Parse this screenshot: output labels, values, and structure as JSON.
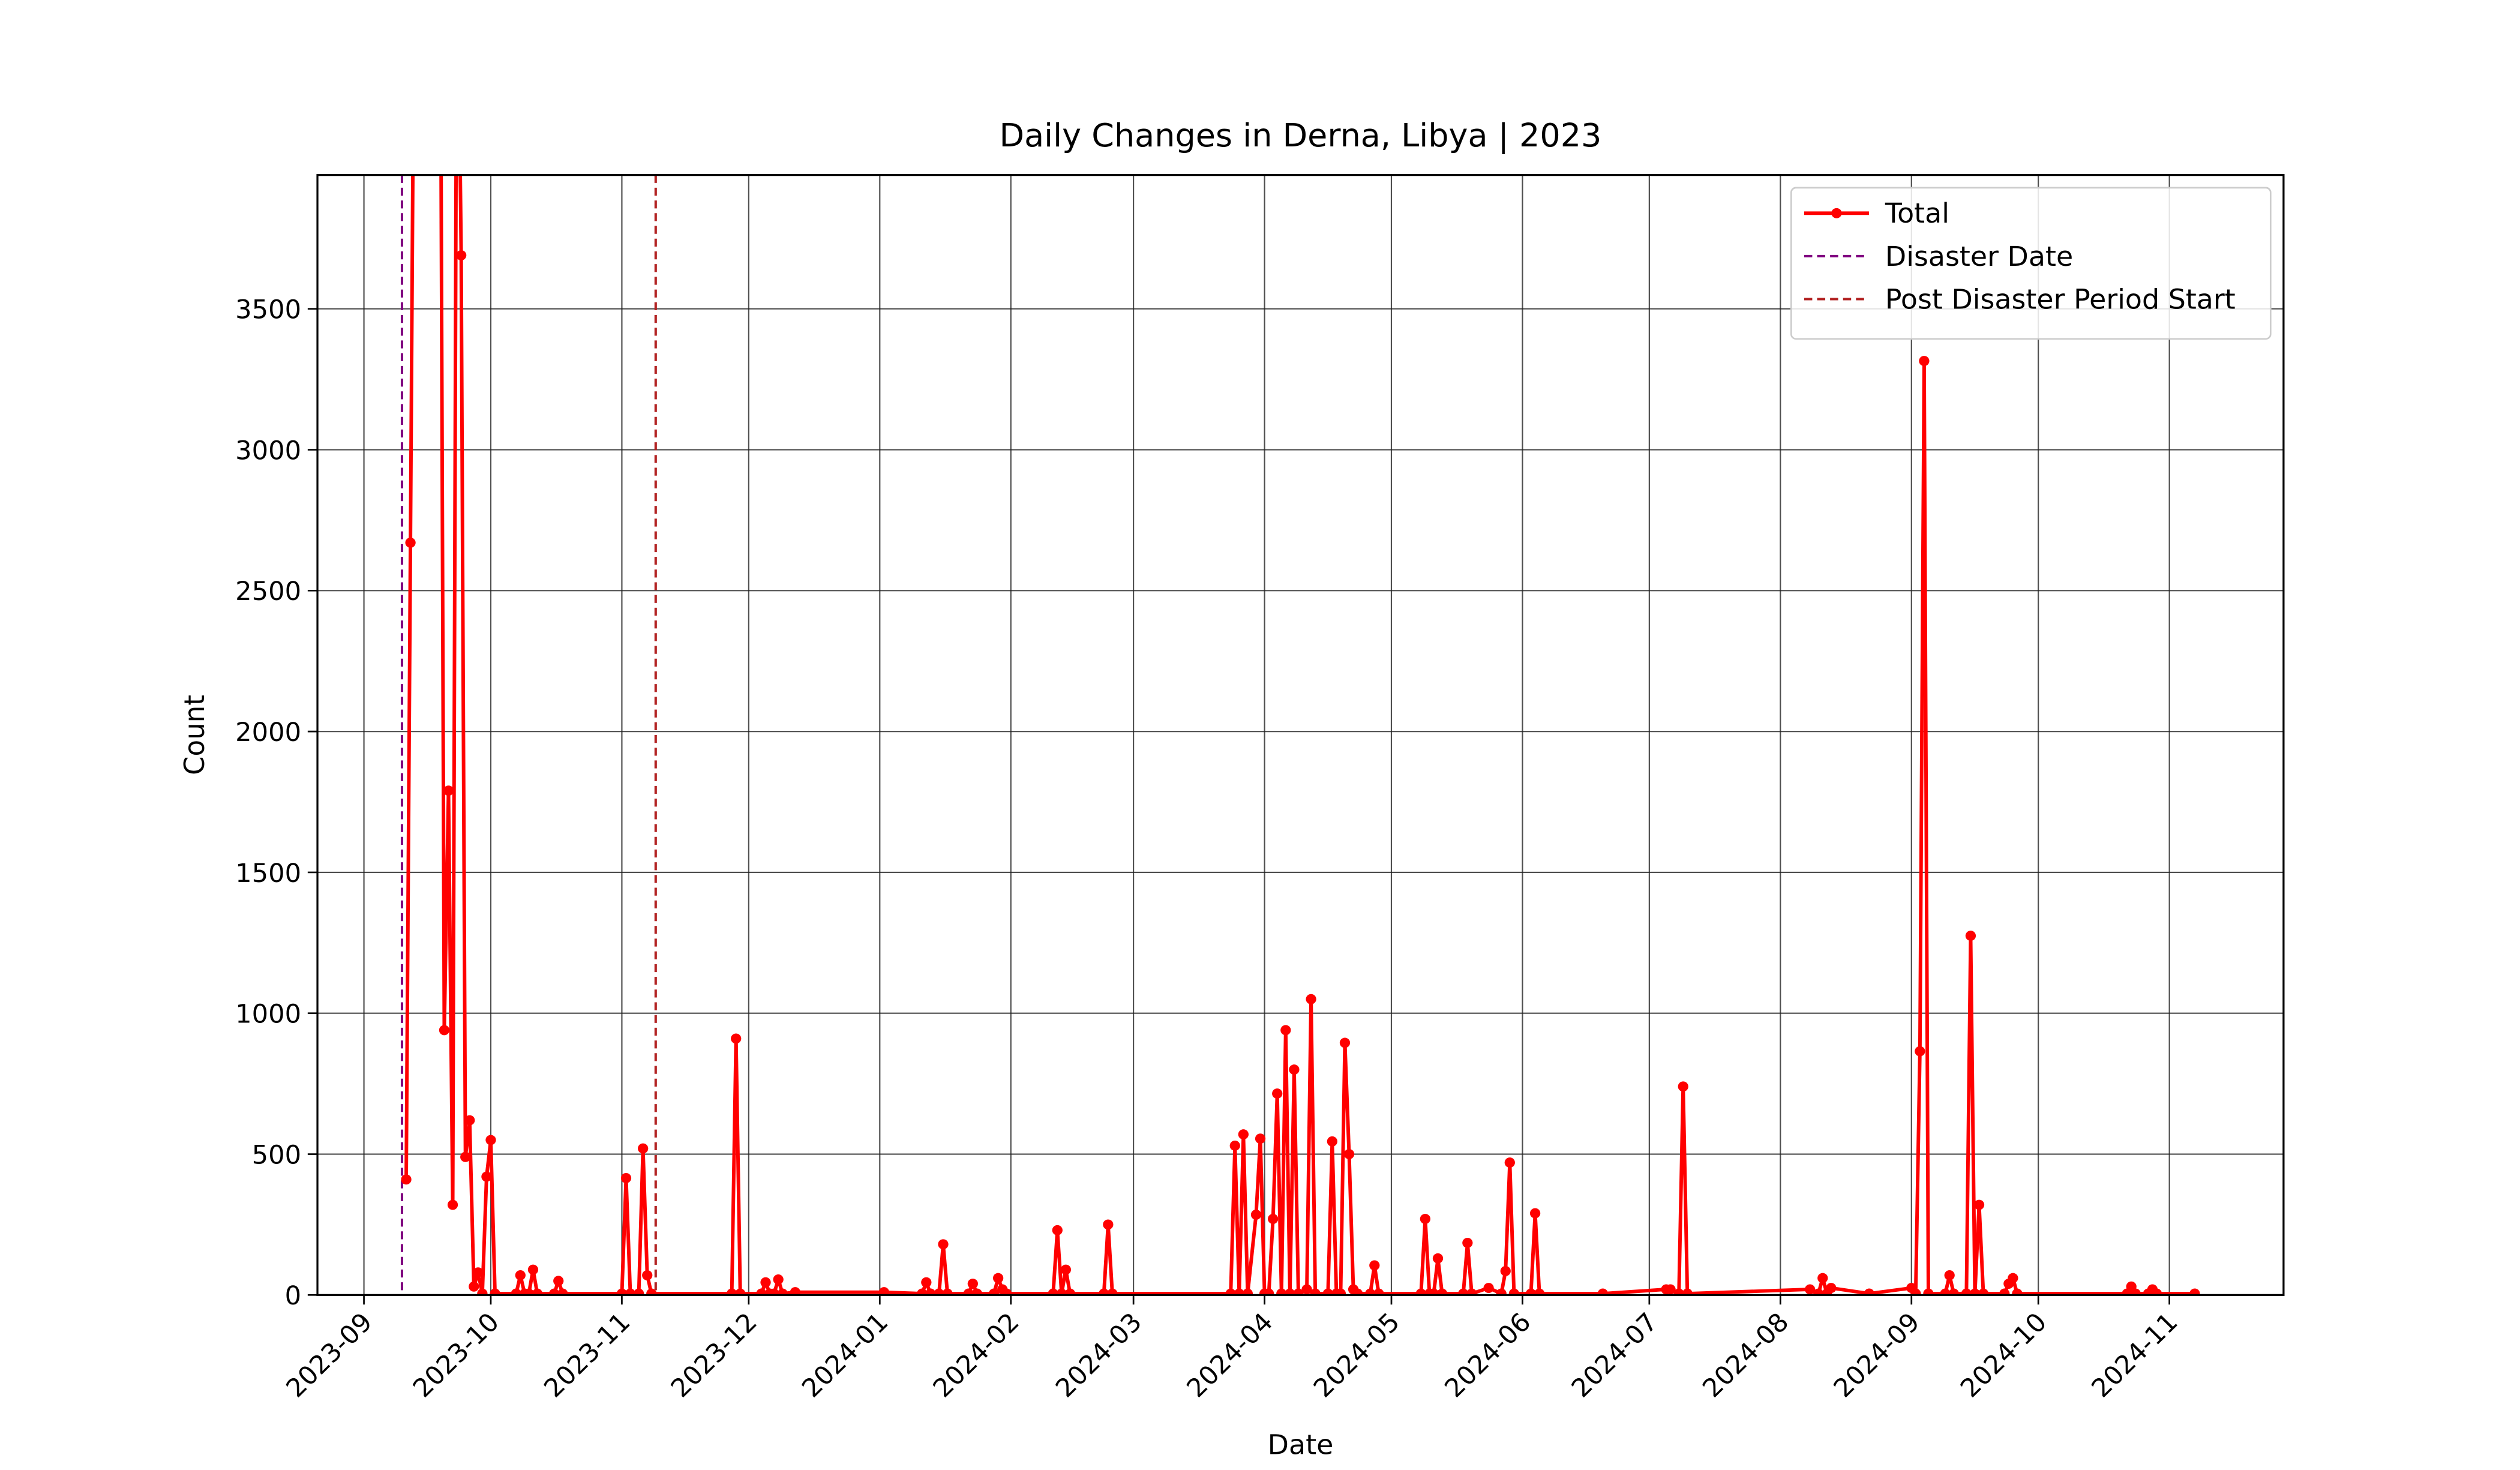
{
  "chart_data": {
    "type": "line",
    "title": "Daily Changes in Derna, Libya | 2023",
    "x_label": "Date",
    "y_label": "Count",
    "x": [
      "2023-09-11",
      "2023-09-12",
      "2023-09-13",
      "2023-09-19",
      "2023-09-20",
      "2023-09-21",
      "2023-09-22",
      "2023-09-23",
      "2023-09-24",
      "2023-09-25",
      "2023-09-26",
      "2023-09-27",
      "2023-09-28",
      "2023-09-29",
      "2023-09-30",
      "2023-10-01",
      "2023-10-02",
      "2023-10-07",
      "2023-10-08",
      "2023-10-09",
      "2023-10-10",
      "2023-10-11",
      "2023-10-12",
      "2023-10-16",
      "2023-10-17",
      "2023-10-18",
      "2023-11-01",
      "2023-11-02",
      "2023-11-03",
      "2023-11-05",
      "2023-11-06",
      "2023-11-07",
      "2023-11-08",
      "2023-11-27",
      "2023-11-28",
      "2023-11-29",
      "2023-12-04",
      "2023-12-05",
      "2023-12-06",
      "2023-12-07",
      "2023-12-08",
      "2023-12-09",
      "2023-12-12",
      "2024-01-02",
      "2024-01-11",
      "2024-01-12",
      "2024-01-13",
      "2024-01-15",
      "2024-01-16",
      "2024-01-17",
      "2024-01-22",
      "2024-01-23",
      "2024-01-24",
      "2024-01-28",
      "2024-01-29",
      "2024-01-30",
      "2024-01-31",
      "2024-02-11",
      "2024-02-12",
      "2024-02-13",
      "2024-02-14",
      "2024-02-15",
      "2024-02-23",
      "2024-02-24",
      "2024-02-25",
      "2024-03-24",
      "2024-03-25",
      "2024-03-26",
      "2024-03-27",
      "2024-03-28",
      "2024-03-30",
      "2024-03-31",
      "2024-04-01",
      "2024-04-02",
      "2024-04-03",
      "2024-04-04",
      "2024-04-05",
      "2024-04-06",
      "2024-04-07",
      "2024-04-08",
      "2024-04-09",
      "2024-04-11",
      "2024-04-12",
      "2024-04-13",
      "2024-04-16",
      "2024-04-17",
      "2024-04-18",
      "2024-04-19",
      "2024-04-20",
      "2024-04-21",
      "2024-04-22",
      "2024-04-23",
      "2024-04-26",
      "2024-04-27",
      "2024-04-28",
      "2024-05-08",
      "2024-05-09",
      "2024-05-10",
      "2024-05-11",
      "2024-05-12",
      "2024-05-13",
      "2024-05-18",
      "2024-05-19",
      "2024-05-20",
      "2024-05-24",
      "2024-05-27",
      "2024-05-28",
      "2024-05-29",
      "2024-05-30",
      "2024-06-03",
      "2024-06-04",
      "2024-06-05",
      "2024-06-20",
      "2024-07-05",
      "2024-07-06",
      "2024-07-08",
      "2024-07-09",
      "2024-07-10",
      "2024-08-08",
      "2024-08-10",
      "2024-08-11",
      "2024-08-12",
      "2024-08-13",
      "2024-08-22",
      "2024-09-01",
      "2024-09-02",
      "2024-09-03",
      "2024-09-04",
      "2024-09-05",
      "2024-09-09",
      "2024-09-10",
      "2024-09-11",
      "2024-09-14",
      "2024-09-15",
      "2024-09-16",
      "2024-09-17",
      "2024-09-18",
      "2024-09-23",
      "2024-09-24",
      "2024-09-25",
      "2024-09-26",
      "2024-10-22",
      "2024-10-23",
      "2024-10-24",
      "2024-10-27",
      "2024-10-28",
      "2024-10-29",
      "2024-11-07"
    ],
    "series": [
      {
        "name": "Total",
        "color": "#ff0000",
        "values": [
          410,
          2670,
          5000,
          5000,
          940,
          1790,
          320,
          5000,
          3690,
          490,
          620,
          30,
          80,
          5,
          420,
          550,
          5,
          5,
          70,
          5,
          5,
          90,
          5,
          5,
          50,
          5,
          5,
          415,
          5,
          5,
          520,
          70,
          5,
          5,
          910,
          5,
          5,
          45,
          5,
          5,
          55,
          5,
          10,
          10,
          5,
          45,
          5,
          5,
          180,
          5,
          5,
          40,
          5,
          5,
          60,
          20,
          5,
          5,
          230,
          5,
          90,
          5,
          5,
          250,
          5,
          5,
          530,
          5,
          570,
          5,
          285,
          555,
          5,
          5,
          270,
          715,
          5,
          940,
          5,
          800,
          5,
          20,
          1050,
          5,
          5,
          545,
          5,
          5,
          895,
          500,
          20,
          5,
          5,
          105,
          5,
          5,
          270,
          5,
          5,
          130,
          5,
          5,
          185,
          5,
          25,
          5,
          85,
          470,
          5,
          5,
          290,
          5,
          5,
          20,
          20,
          5,
          740,
          5,
          20,
          5,
          60,
          5,
          25,
          5,
          25,
          5,
          865,
          3315,
          5,
          5,
          70,
          5,
          5,
          1275,
          5,
          320,
          5,
          5,
          40,
          60,
          5,
          5,
          30,
          5,
          5,
          20,
          5,
          5
        ]
      }
    ],
    "vlines": [
      {
        "name": "Disaster Date",
        "x": "2023-09-10",
        "color": "#800080"
      },
      {
        "name": "Post Disaster Period Start",
        "x": "2023-11-09",
        "color": "#b22222"
      }
    ],
    "xlim": [
      "2023-08-21",
      "2024-11-28"
    ],
    "xticks": [
      {
        "value": "2023-09-01",
        "label": "2023-09"
      },
      {
        "value": "2023-10-01",
        "label": "2023-10"
      },
      {
        "value": "2023-11-01",
        "label": "2023-11"
      },
      {
        "value": "2023-12-01",
        "label": "2023-12"
      },
      {
        "value": "2024-01-01",
        "label": "2024-01"
      },
      {
        "value": "2024-02-01",
        "label": "2024-02"
      },
      {
        "value": "2024-03-01",
        "label": "2024-03"
      },
      {
        "value": "2024-04-01",
        "label": "2024-04"
      },
      {
        "value": "2024-05-01",
        "label": "2024-05"
      },
      {
        "value": "2024-06-01",
        "label": "2024-06"
      },
      {
        "value": "2024-07-01",
        "label": "2024-07"
      },
      {
        "value": "2024-08-01",
        "label": "2024-08"
      },
      {
        "value": "2024-09-01",
        "label": "2024-09"
      },
      {
        "value": "2024-10-01",
        "label": "2024-10"
      },
      {
        "value": "2024-11-01",
        "label": "2024-11"
      }
    ],
    "ylim": [
      0,
      3975
    ],
    "yticks": [
      0,
      500,
      1000,
      1500,
      2000,
      2500,
      3000,
      3500
    ],
    "grid": true,
    "legend": "upper right"
  }
}
